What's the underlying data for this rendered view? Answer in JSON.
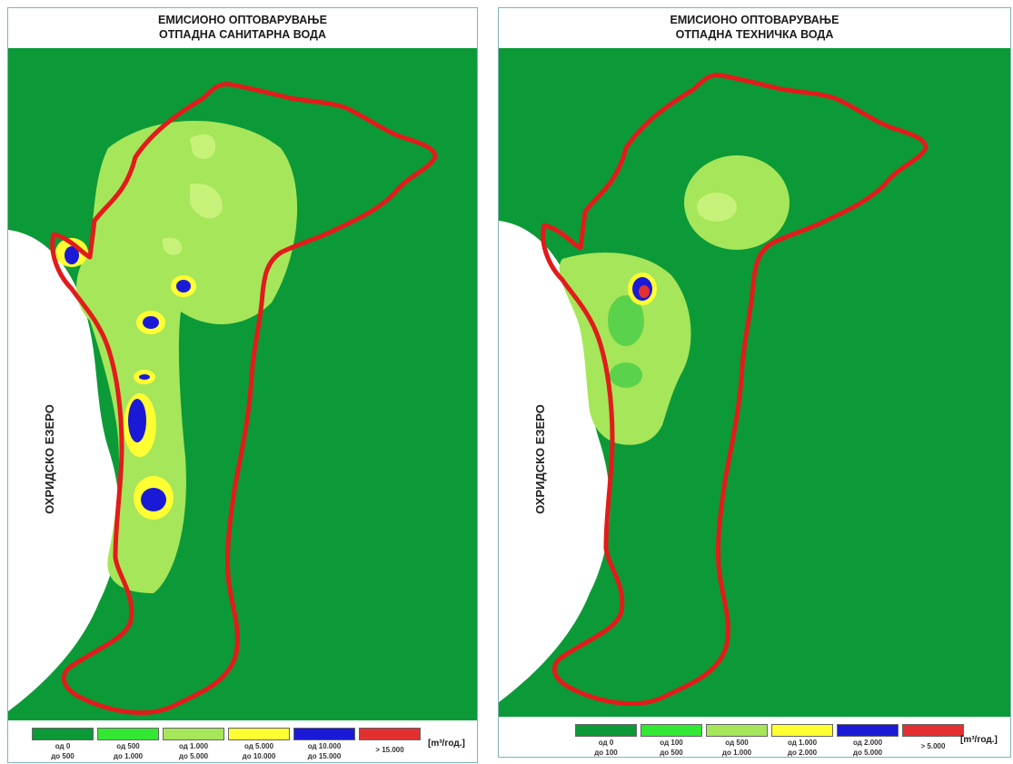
{
  "colors": {
    "background_map": "#0b9a37",
    "boundary": "#e21b1b",
    "lake": "#ffffff"
  },
  "left_map": {
    "title_line1": "ЕМИСИОНО ОПТОВАРУВАЊЕ",
    "title_line2": "ОТПАДНА САНИТАРНА ВОДА",
    "lake_label": "ОХРИДСКО ЕЗЕРО",
    "unit": "[m³/год.]",
    "legend": [
      {
        "line1": "од 0",
        "line2": "до 500",
        "color": "#0b9a37"
      },
      {
        "line1": "од 500",
        "line2": "до 1.000",
        "color": "#33e833"
      },
      {
        "line1": "од 1.000",
        "line2": "до 5.000",
        "color": "#a6e65a"
      },
      {
        "line1": "од 5.000",
        "line2": "до 10.000",
        "color": "#ffff33"
      },
      {
        "line1": "од 10.000",
        "line2": "до 15.000",
        "color": "#1a1ad6"
      },
      {
        "line1": "> 15.000",
        "line2": "",
        "color": "#e23030"
      }
    ]
  },
  "right_map": {
    "title_line1": "ЕМИСИОНО ОПТОВАРУВАЊЕ",
    "title_line2": "ОТПАДНА ТЕХНИЧКА ВОДА",
    "lake_label": "ОХРИДСКО ЕЗЕРО",
    "unit": "[m³/год.]",
    "legend": [
      {
        "line1": "од 0",
        "line2": "до 100",
        "color": "#0b9a37"
      },
      {
        "line1": "од 100",
        "line2": "до 500",
        "color": "#33e833"
      },
      {
        "line1": "од 500",
        "line2": "до 1.000",
        "color": "#a6e65a"
      },
      {
        "line1": "од 1.000",
        "line2": "до 2.000",
        "color": "#ffff33"
      },
      {
        "line1": "од 2.000",
        "line2": "до 5.000",
        "color": "#1a1ad6"
      },
      {
        "line1": "> 5.000",
        "line2": "",
        "color": "#e23030"
      }
    ]
  }
}
